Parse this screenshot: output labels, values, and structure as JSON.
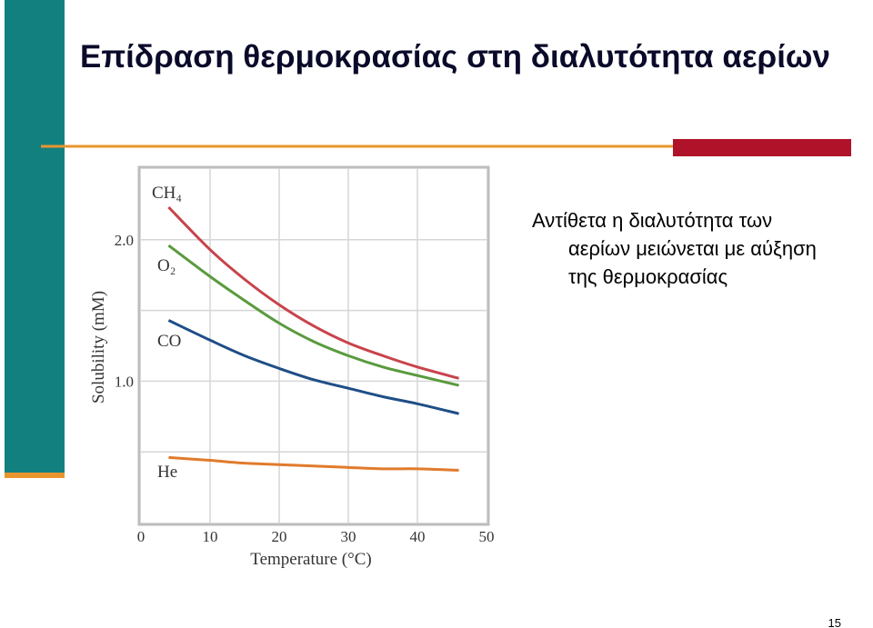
{
  "slide_title": "Επίδραση θερμοκρασίας στη διαλυτότητα αερίων",
  "body": {
    "lines": [
      "Αντίθετα η διαλυτότητα των",
      "αερίων μειώνεται με αύξηση",
      "της θερμοκρασίας"
    ]
  },
  "page_number": "15",
  "chart_data": {
    "type": "line",
    "xlabel": "Temperature (°C)",
    "ylabel": "Solubility (mM)",
    "x": [
      4,
      10,
      15,
      20,
      25,
      30,
      35,
      40,
      46
    ],
    "xlim": [
      0,
      50
    ],
    "xticks": [
      0,
      10,
      20,
      30,
      40,
      50
    ],
    "ylim": [
      0,
      2.5
    ],
    "yticks": [
      {
        "value": 1,
        "label": "1.0"
      },
      {
        "value": 2,
        "label": "2.0"
      }
    ],
    "ygrid": [
      0.5,
      1,
      1.5,
      2
    ],
    "grid": true,
    "series": [
      {
        "name": "CH₄",
        "color": "#c8434b",
        "values": [
          2.23,
          1.93,
          1.72,
          1.54,
          1.39,
          1.27,
          1.18,
          1.1,
          1.02
        ]
      },
      {
        "name": "O₂",
        "color": "#5a9a3e",
        "values": [
          1.96,
          1.74,
          1.57,
          1.41,
          1.28,
          1.18,
          1.1,
          1.04,
          0.97
        ]
      },
      {
        "name": "CO",
        "color": "#1f4e86",
        "values": [
          1.43,
          1.29,
          1.18,
          1.09,
          1.01,
          0.95,
          0.89,
          0.84,
          0.77
        ]
      },
      {
        "name": "He",
        "color": "#e07b2c",
        "values": [
          0.46,
          0.44,
          0.42,
          0.41,
          0.4,
          0.39,
          0.38,
          0.38,
          0.37
        ]
      }
    ]
  }
}
